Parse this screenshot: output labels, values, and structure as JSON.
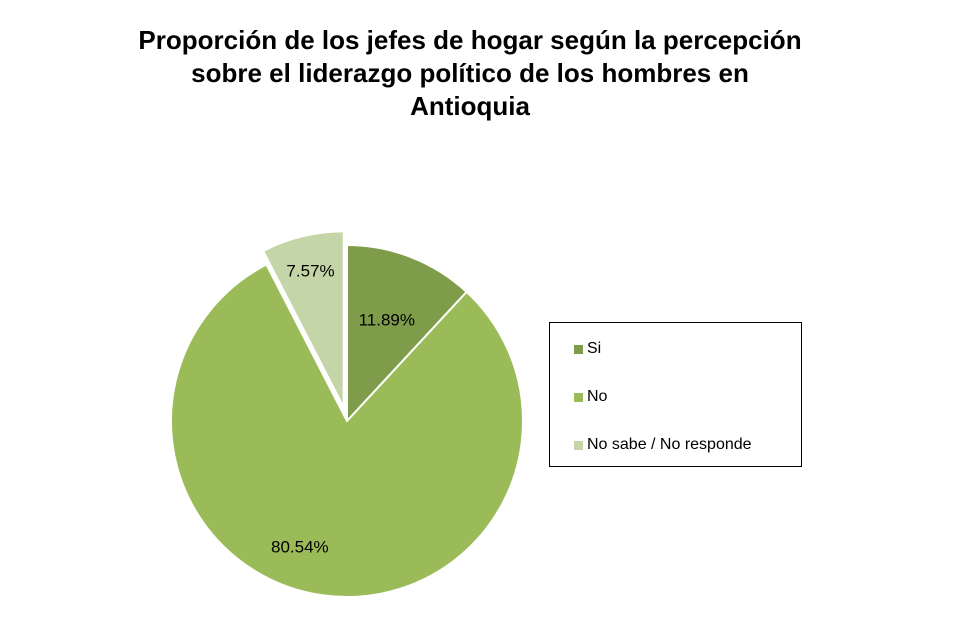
{
  "chart_data": {
    "type": "pie",
    "title": "Proporción de los jefes de hogar según la percepción\nsobre el liderazgo político de los hombres  en\nAntioquia",
    "categories": [
      "Si",
      "No",
      "No sabe / No responde"
    ],
    "values": [
      11.89,
      80.54,
      7.57
    ],
    "labels": [
      "11.89%",
      "80.54%",
      "7.57%"
    ],
    "colors": [
      "#7f9c4a",
      "#9bbb59",
      "#c4d6a8"
    ],
    "exploded": [
      false,
      false,
      true
    ],
    "legend_position": "right"
  }
}
